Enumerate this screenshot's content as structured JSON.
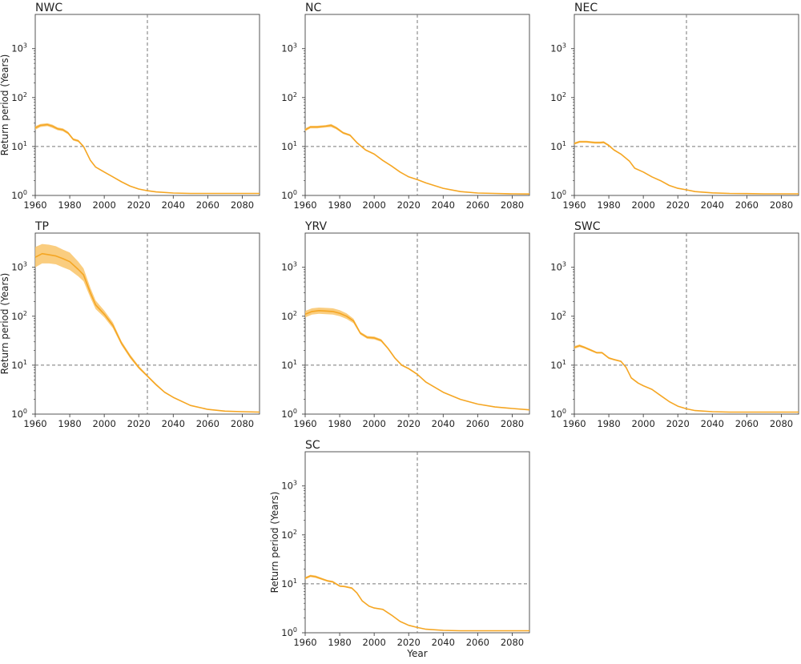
{
  "chart_data": [
    {
      "type": "line",
      "title": "NWC",
      "xlabel": "",
      "ylabel": "Return period (Years)",
      "xlim": [
        1960,
        2090
      ],
      "ylim": [
        1,
        5000
      ],
      "yscale": "log",
      "xticks": [
        "1960",
        "1980",
        "2000",
        "2020",
        "2040",
        "2060",
        "2080"
      ],
      "yticks": [
        {
          "base": "10",
          "exp": "0"
        },
        {
          "base": "10",
          "exp": "1"
        },
        {
          "base": "10",
          "exp": "2"
        },
        {
          "base": "10",
          "exp": "3"
        }
      ],
      "reference_lines": {
        "x": 2025,
        "y": 10
      },
      "series": [
        {
          "x": [
            1960,
            1963,
            1967,
            1970,
            1973,
            1976,
            1979,
            1982,
            1985,
            1988,
            1992,
            1995,
            2000,
            2005,
            2010,
            2015,
            2020,
            2025,
            2030,
            2040,
            2050,
            2060,
            2070,
            2080,
            2090
          ],
          "y": [
            24,
            27,
            28,
            26,
            23,
            22,
            19,
            14,
            13,
            10,
            5.2,
            3.8,
            3.0,
            2.4,
            1.9,
            1.55,
            1.35,
            1.25,
            1.18,
            1.12,
            1.1,
            1.1,
            1.1,
            1.1,
            1.1
          ],
          "lower": [
            22,
            25,
            26,
            24,
            21.5,
            20.5,
            17.8,
            13.2,
            12.3,
            9.6,
            5.0,
            3.7,
            2.95,
            2.35,
            1.87,
            1.53,
            1.34,
            1.24,
            1.17,
            1.12,
            1.1,
            1.1,
            1.1,
            1.1,
            1.1
          ],
          "upper": [
            26,
            29,
            30,
            28,
            24.5,
            23.5,
            20.2,
            14.8,
            13.7,
            10.4,
            5.4,
            3.9,
            3.05,
            2.45,
            1.93,
            1.57,
            1.36,
            1.26,
            1.19,
            1.12,
            1.1,
            1.1,
            1.1,
            1.1,
            1.1
          ]
        }
      ]
    },
    {
      "type": "line",
      "title": "NC",
      "xlabel": "",
      "ylabel": "",
      "xlim": [
        1960,
        2090
      ],
      "ylim": [
        1,
        5000
      ],
      "yscale": "log",
      "xticks": [
        "1960",
        "1980",
        "2000",
        "2020",
        "2040",
        "2060",
        "2080"
      ],
      "yticks": [
        {
          "base": "10",
          "exp": "0"
        },
        {
          "base": "10",
          "exp": "1"
        },
        {
          "base": "10",
          "exp": "2"
        },
        {
          "base": "10",
          "exp": "3"
        }
      ],
      "reference_lines": {
        "x": 2025,
        "y": 10
      },
      "series": [
        {
          "x": [
            1960,
            1963,
            1967,
            1972,
            1975,
            1978,
            1982,
            1986,
            1990,
            1995,
            2000,
            2005,
            2010,
            2015,
            2020,
            2025,
            2030,
            2040,
            2050,
            2060,
            2070,
            2080,
            2090
          ],
          "y": [
            22,
            25,
            25,
            26,
            27,
            24,
            19,
            17,
            12,
            8.5,
            7.0,
            5.2,
            4.0,
            3.0,
            2.4,
            2.1,
            1.8,
            1.4,
            1.2,
            1.12,
            1.1,
            1.08,
            1.07
          ],
          "lower": [
            20.5,
            23.5,
            23.5,
            24.5,
            25,
            22.5,
            18,
            16.2,
            11.5,
            8.2,
            6.8,
            5.05,
            3.9,
            2.95,
            2.35,
            2.07,
            1.78,
            1.39,
            1.2,
            1.12,
            1.1,
            1.08,
            1.07
          ],
          "upper": [
            23.5,
            26.5,
            26.5,
            27.5,
            29,
            25.5,
            20,
            17.8,
            12.5,
            8.8,
            7.2,
            5.35,
            4.1,
            3.05,
            2.45,
            2.13,
            1.82,
            1.41,
            1.2,
            1.12,
            1.1,
            1.08,
            1.07
          ]
        }
      ]
    },
    {
      "type": "line",
      "title": "NEC",
      "xlabel": "",
      "ylabel": "",
      "xlim": [
        1960,
        2090
      ],
      "ylim": [
        1,
        5000
      ],
      "yscale": "log",
      "xticks": [
        "1960",
        "1980",
        "2000",
        "2020",
        "2040",
        "2060",
        "2080"
      ],
      "yticks": [
        {
          "base": "10",
          "exp": "0"
        },
        {
          "base": "10",
          "exp": "1"
        },
        {
          "base": "10",
          "exp": "2"
        },
        {
          "base": "10",
          "exp": "3"
        }
      ],
      "reference_lines": {
        "x": 2025,
        "y": 10
      },
      "series": [
        {
          "x": [
            1960,
            1963,
            1967,
            1972,
            1975,
            1977,
            1980,
            1983,
            1987,
            1992,
            1995,
            2000,
            2005,
            2010,
            2015,
            2020,
            2025,
            2030,
            2040,
            2050,
            2060,
            2070,
            2080,
            2090
          ],
          "y": [
            11.5,
            12.5,
            12.5,
            12,
            12,
            12.2,
            10.5,
            8.5,
            7.0,
            5.0,
            3.6,
            3.0,
            2.4,
            2.0,
            1.6,
            1.4,
            1.3,
            1.2,
            1.13,
            1.1,
            1.09,
            1.08,
            1.08,
            1.08
          ],
          "lower": [
            10.9,
            11.9,
            11.9,
            11.4,
            11.4,
            11.6,
            10.0,
            8.2,
            6.8,
            4.9,
            3.55,
            2.95,
            2.37,
            1.98,
            1.59,
            1.39,
            1.3,
            1.2,
            1.13,
            1.1,
            1.09,
            1.08,
            1.08,
            1.08
          ],
          "upper": [
            12.1,
            13.1,
            13.1,
            12.6,
            12.6,
            12.8,
            11.0,
            8.8,
            7.2,
            5.1,
            3.65,
            3.05,
            2.43,
            2.02,
            1.61,
            1.41,
            1.3,
            1.2,
            1.13,
            1.1,
            1.09,
            1.08,
            1.08,
            1.08
          ]
        }
      ]
    },
    {
      "type": "line",
      "title": "TP",
      "xlabel": "",
      "ylabel": "Return period (Years)",
      "xlim": [
        1960,
        2090
      ],
      "ylim": [
        1,
        5000
      ],
      "yscale": "log",
      "xticks": [
        "1960",
        "1980",
        "2000",
        "2020",
        "2040",
        "2060",
        "2080"
      ],
      "yticks": [
        {
          "base": "10",
          "exp": "0"
        },
        {
          "base": "10",
          "exp": "1"
        },
        {
          "base": "10",
          "exp": "2"
        },
        {
          "base": "10",
          "exp": "3"
        }
      ],
      "reference_lines": {
        "x": 2025,
        "y": 10
      },
      "series": [
        {
          "x": [
            1960,
            1964,
            1968,
            1972,
            1976,
            1980,
            1985,
            1988,
            1992,
            1995,
            2000,
            2005,
            2010,
            2015,
            2020,
            2025,
            2030,
            2035,
            2040,
            2050,
            2060,
            2070,
            2080,
            2090
          ],
          "y": [
            1600,
            1900,
            1800,
            1700,
            1500,
            1300,
            900,
            700,
            300,
            170,
            110,
            65,
            28,
            15,
            9,
            6,
            4,
            2.8,
            2.2,
            1.5,
            1.25,
            1.15,
            1.12,
            1.1
          ],
          "lower": [
            1000,
            1200,
            1200,
            1150,
            1000,
            880,
            650,
            520,
            240,
            140,
            95,
            57,
            25.5,
            13.8,
            8.4,
            5.7,
            3.8,
            2.7,
            2.15,
            1.48,
            1.24,
            1.15,
            1.12,
            1.1
          ],
          "upper": [
            2600,
            3000,
            2900,
            2700,
            2300,
            2000,
            1300,
            950,
            380,
            210,
            130,
            75,
            31,
            16.5,
            9.7,
            6.3,
            4.2,
            2.9,
            2.25,
            1.52,
            1.26,
            1.16,
            1.12,
            1.1
          ]
        }
      ]
    },
    {
      "type": "line",
      "title": "YRV",
      "xlabel": "",
      "ylabel": "",
      "xlim": [
        1960,
        2090
      ],
      "ylim": [
        1,
        5000
      ],
      "yscale": "log",
      "xticks": [
        "1960",
        "1980",
        "2000",
        "2020",
        "2040",
        "2060",
        "2080"
      ],
      "yticks": [
        {
          "base": "10",
          "exp": "0"
        },
        {
          "base": "10",
          "exp": "1"
        },
        {
          "base": "10",
          "exp": "2"
        },
        {
          "base": "10",
          "exp": "3"
        }
      ],
      "reference_lines": {
        "x": 2025,
        "y": 10
      },
      "series": [
        {
          "x": [
            1960,
            1964,
            1968,
            1972,
            1976,
            1980,
            1984,
            1988,
            1992,
            1996,
            2000,
            2004,
            2008,
            2012,
            2016,
            2020,
            2025,
            2030,
            2040,
            2050,
            2060,
            2070,
            2080,
            2090
          ],
          "y": [
            110,
            125,
            130,
            128,
            125,
            115,
            100,
            80,
            45,
            37,
            36,
            32,
            22,
            14,
            10,
            8.5,
            6.5,
            4.5,
            2.8,
            2.0,
            1.6,
            1.4,
            1.3,
            1.22
          ],
          "lower": [
            95,
            108,
            112,
            110,
            108,
            100,
            88,
            72,
            42,
            34.5,
            33.5,
            30,
            21,
            13.4,
            9.6,
            8.2,
            6.3,
            4.4,
            2.75,
            1.97,
            1.58,
            1.39,
            1.29,
            1.22
          ],
          "upper": [
            128,
            145,
            150,
            148,
            145,
            133,
            114,
            89,
            48,
            39.5,
            38.5,
            34,
            23,
            14.6,
            10.4,
            8.8,
            6.7,
            4.6,
            2.85,
            2.03,
            1.62,
            1.41,
            1.31,
            1.22
          ]
        }
      ]
    },
    {
      "type": "line",
      "title": "SWC",
      "xlabel": "",
      "ylabel": "",
      "xlim": [
        1960,
        2090
      ],
      "ylim": [
        1,
        5000
      ],
      "yscale": "log",
      "xticks": [
        "1960",
        "1980",
        "2000",
        "2020",
        "2040",
        "2060",
        "2080"
      ],
      "yticks": [
        {
          "base": "10",
          "exp": "0"
        },
        {
          "base": "10",
          "exp": "1"
        },
        {
          "base": "10",
          "exp": "2"
        },
        {
          "base": "10",
          "exp": "3"
        }
      ],
      "reference_lines": {
        "x": 2025,
        "y": 10
      },
      "series": [
        {
          "x": [
            1960,
            1963,
            1966,
            1970,
            1973,
            1976,
            1980,
            1983,
            1987,
            1990,
            1993,
            1997,
            2000,
            2005,
            2010,
            2015,
            2020,
            2025,
            2030,
            2040,
            2050,
            2060,
            2070,
            2080,
            2090
          ],
          "y": [
            23,
            25,
            23,
            20,
            18,
            18,
            14,
            13,
            12,
            9,
            5.5,
            4.3,
            3.8,
            3.2,
            2.4,
            1.8,
            1.45,
            1.28,
            1.18,
            1.12,
            1.1,
            1.1,
            1.1,
            1.1,
            1.1
          ],
          "lower": [
            21.5,
            23.5,
            21.8,
            19,
            17.2,
            17.2,
            13.4,
            12.5,
            11.6,
            8.7,
            5.35,
            4.2,
            3.72,
            3.15,
            2.37,
            1.78,
            1.44,
            1.27,
            1.18,
            1.12,
            1.1,
            1.1,
            1.1,
            1.1,
            1.1
          ],
          "upper": [
            24.5,
            26.5,
            24.2,
            21,
            18.8,
            18.8,
            14.6,
            13.5,
            12.4,
            9.3,
            5.65,
            4.4,
            3.88,
            3.25,
            2.43,
            1.82,
            1.46,
            1.29,
            1.18,
            1.12,
            1.1,
            1.1,
            1.1,
            1.1,
            1.1
          ]
        }
      ]
    },
    {
      "type": "line",
      "title": "SC",
      "xlabel": "Year",
      "ylabel": "Return period (Years)",
      "xlim": [
        1960,
        2090
      ],
      "ylim": [
        1,
        5000
      ],
      "yscale": "log",
      "xticks": [
        "1960",
        "1980",
        "2000",
        "2020",
        "2040",
        "2060",
        "2080"
      ],
      "yticks": [
        {
          "base": "10",
          "exp": "0"
        },
        {
          "base": "10",
          "exp": "1"
        },
        {
          "base": "10",
          "exp": "2"
        },
        {
          "base": "10",
          "exp": "3"
        }
      ],
      "reference_lines": {
        "x": 2025,
        "y": 10
      },
      "series": [
        {
          "x": [
            1960,
            1963,
            1966,
            1970,
            1973,
            1976,
            1980,
            1983,
            1987,
            1990,
            1993,
            1997,
            2000,
            2005,
            2010,
            2015,
            2020,
            2025,
            2030,
            2040,
            2050,
            2060,
            2070,
            2080,
            2090
          ],
          "y": [
            13,
            14.5,
            14,
            12.5,
            11.5,
            11,
            9,
            8.8,
            8.2,
            6.5,
            4.5,
            3.5,
            3.2,
            3.0,
            2.3,
            1.7,
            1.42,
            1.28,
            1.18,
            1.12,
            1.1,
            1.1,
            1.1,
            1.1,
            1.1
          ],
          "lower": [
            12.3,
            13.7,
            13.2,
            11.9,
            11.0,
            10.5,
            8.7,
            8.5,
            7.9,
            6.3,
            4.4,
            3.45,
            3.15,
            2.95,
            2.27,
            1.69,
            1.41,
            1.27,
            1.18,
            1.12,
            1.1,
            1.1,
            1.1,
            1.1,
            1.1
          ],
          "upper": [
            13.7,
            15.3,
            14.8,
            13.1,
            12.0,
            11.5,
            9.3,
            9.1,
            8.5,
            6.7,
            4.6,
            3.55,
            3.25,
            3.05,
            2.33,
            1.71,
            1.43,
            1.29,
            1.18,
            1.12,
            1.1,
            1.1,
            1.1,
            1.1,
            1.1
          ]
        }
      ]
    }
  ],
  "colors": {
    "line": "#f5a623",
    "band": "#f9c468",
    "reference": "#777777",
    "axis": "#444444"
  }
}
